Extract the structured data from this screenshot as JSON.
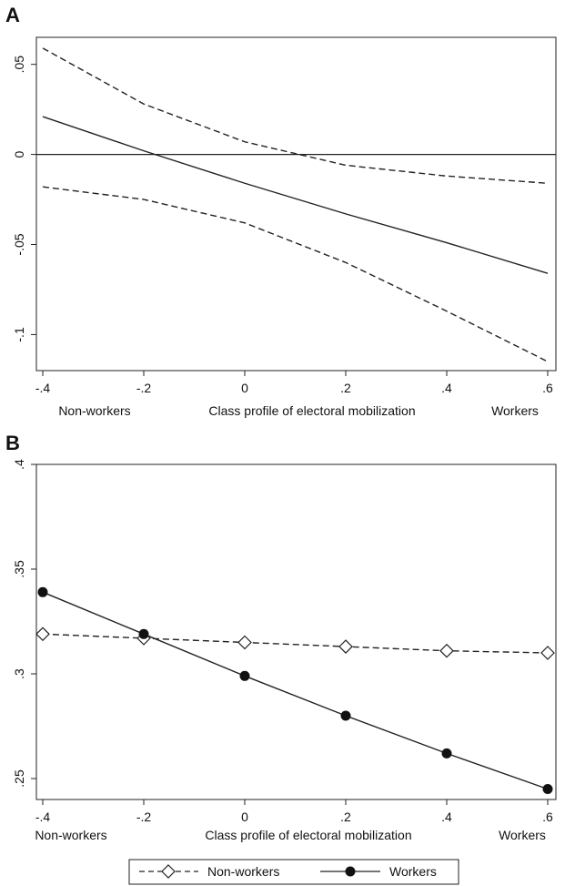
{
  "chart_data": [
    {
      "panel": "A",
      "type": "line",
      "x": [
        -0.4,
        -0.2,
        0,
        0.2,
        0.4,
        0.6
      ],
      "xticks": [
        -0.4,
        -0.2,
        0,
        0.2,
        0.4,
        0.6
      ],
      "xtick_labels": [
        "-.4",
        "-.2",
        "0",
        ".2",
        ".4",
        ".6"
      ],
      "xlim": [
        -0.4,
        0.6
      ],
      "yticks": [
        0.05,
        0,
        -0.05,
        -0.1
      ],
      "ytick_labels": [
        ".05",
        "0",
        "-.05",
        "-.1"
      ],
      "ylim": [
        -0.12,
        0.065
      ],
      "xaxis_captions": {
        "left": "Non-workers",
        "center": "Class profile of electoral mobilization",
        "right": "Workers"
      },
      "reference_line_y": 0,
      "series": [
        {
          "role": "estimate",
          "style": "solid",
          "values": [
            0.021,
            0.002,
            -0.016,
            -0.033,
            -0.049,
            -0.066
          ]
        },
        {
          "role": "upper bound",
          "style": "dashed",
          "values": [
            0.059,
            0.028,
            0.007,
            -0.006,
            -0.012,
            -0.016
          ]
        },
        {
          "role": "lower bound",
          "style": "dashed",
          "values": [
            -0.018,
            -0.025,
            -0.038,
            -0.06,
            -0.087,
            -0.115
          ]
        }
      ]
    },
    {
      "panel": "B",
      "type": "line",
      "x": [
        -0.4,
        -0.2,
        0,
        0.2,
        0.4,
        0.6
      ],
      "xticks": [
        -0.4,
        -0.2,
        0,
        0.2,
        0.4,
        0.6
      ],
      "xtick_labels": [
        "-.4",
        "-.2",
        "0",
        ".2",
        ".4",
        ".6"
      ],
      "xlim": [
        -0.4,
        0.6
      ],
      "yticks": [
        0.4,
        0.35,
        0.3,
        0.25
      ],
      "ytick_labels": [
        ".4",
        ".35",
        ".3",
        ".25"
      ],
      "ylim": [
        0.24,
        0.4
      ],
      "xaxis_captions": {
        "left": "Non-workers",
        "center": "Class profile of electoral mobilization",
        "right": "Workers"
      },
      "legend_position": "bottom",
      "series": [
        {
          "name": "Non-workers",
          "style": "dashed",
          "marker": "hollow-diamond",
          "values": [
            0.319,
            0.317,
            0.315,
            0.313,
            0.311,
            0.31
          ]
        },
        {
          "name": "Workers",
          "style": "solid",
          "marker": "filled-circle",
          "values": [
            0.339,
            0.319,
            0.299,
            0.28,
            0.262,
            0.245
          ]
        }
      ]
    }
  ]
}
